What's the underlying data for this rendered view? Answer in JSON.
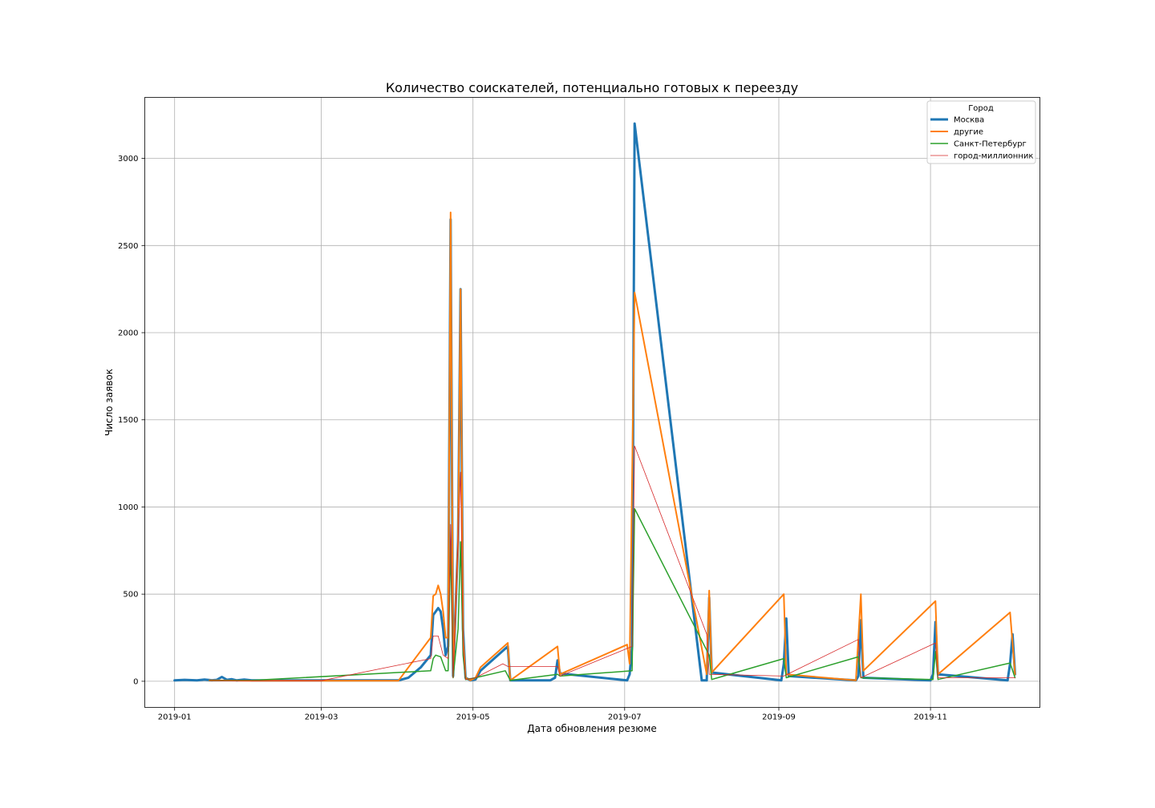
{
  "chart_data": {
    "type": "line",
    "title": "Количество соискателей, потенциально готовых к переезду",
    "xlabel": "Дата обновления резюме",
    "ylabel": "Число заявок",
    "x_type": "date",
    "xlim": [
      "2018-12-20",
      "2019-12-15"
    ],
    "ylim": [
      -150,
      3350
    ],
    "xticks": [
      "2019-01-01",
      "2019-03-01",
      "2019-05-01",
      "2019-07-01",
      "2019-09-01",
      "2019-11-01"
    ],
    "xtick_labels": [
      "2019-01",
      "2019-03",
      "2019-05",
      "2019-07",
      "2019-09",
      "2019-11"
    ],
    "yticks": [
      0,
      500,
      1000,
      1500,
      2000,
      2500,
      3000
    ],
    "ytick_labels": [
      "0",
      "500",
      "1000",
      "1500",
      "2000",
      "2500",
      "3000"
    ],
    "grid": true,
    "legend": {
      "title": "Город",
      "location": "top-right"
    },
    "series": [
      {
        "name": "Москва",
        "color": "#1f77b4",
        "width": 3,
        "points": [
          [
            "2019-01-01",
            5
          ],
          [
            "2019-01-05",
            8
          ],
          [
            "2019-01-10",
            5
          ],
          [
            "2019-01-13",
            10
          ],
          [
            "2019-01-16",
            6
          ],
          [
            "2019-01-18",
            8
          ],
          [
            "2019-01-20",
            25
          ],
          [
            "2019-01-22",
            8
          ],
          [
            "2019-01-24",
            12
          ],
          [
            "2019-01-26",
            5
          ],
          [
            "2019-01-29",
            10
          ],
          [
            "2019-02-01",
            5
          ],
          [
            "2019-02-10",
            5
          ],
          [
            "2019-03-01",
            5
          ],
          [
            "2019-04-01",
            5
          ],
          [
            "2019-04-05",
            20
          ],
          [
            "2019-04-10",
            80
          ],
          [
            "2019-04-14",
            150
          ],
          [
            "2019-04-15",
            380
          ],
          [
            "2019-04-17",
            420
          ],
          [
            "2019-04-18",
            400
          ],
          [
            "2019-04-19",
            300
          ],
          [
            "2019-04-20",
            150
          ],
          [
            "2019-04-21",
            200
          ],
          [
            "2019-04-22",
            2650
          ],
          [
            "2019-04-23",
            30
          ],
          [
            "2019-04-25",
            800
          ],
          [
            "2019-04-26",
            2250
          ],
          [
            "2019-04-27",
            300
          ],
          [
            "2019-04-28",
            20
          ],
          [
            "2019-04-30",
            5
          ],
          [
            "2019-05-02",
            10
          ],
          [
            "2019-05-04",
            60
          ],
          [
            "2019-05-15",
            200
          ],
          [
            "2019-05-16",
            5
          ],
          [
            "2019-06-01",
            5
          ],
          [
            "2019-06-03",
            20
          ],
          [
            "2019-06-04",
            120
          ],
          [
            "2019-06-05",
            45
          ],
          [
            "2019-07-02",
            5
          ],
          [
            "2019-07-03",
            40
          ],
          [
            "2019-07-04",
            200
          ],
          [
            "2019-07-05",
            3200
          ],
          [
            "2019-08-01",
            5
          ],
          [
            "2019-08-03",
            5
          ],
          [
            "2019-08-04",
            480
          ],
          [
            "2019-08-05",
            50
          ],
          [
            "2019-09-02",
            5
          ],
          [
            "2019-09-03",
            100
          ],
          [
            "2019-09-04",
            360
          ],
          [
            "2019-09-05",
            30
          ],
          [
            "2019-10-02",
            5
          ],
          [
            "2019-10-03",
            30
          ],
          [
            "2019-10-04",
            350
          ],
          [
            "2019-10-05",
            20
          ],
          [
            "2019-11-01",
            5
          ],
          [
            "2019-11-02",
            40
          ],
          [
            "2019-11-03",
            340
          ],
          [
            "2019-11-04",
            40
          ],
          [
            "2019-12-02",
            5
          ],
          [
            "2019-12-03",
            100
          ],
          [
            "2019-12-04",
            270
          ],
          [
            "2019-12-05",
            40
          ]
        ]
      },
      {
        "name": "другие",
        "color": "#ff7f0e",
        "width": 2,
        "points": [
          [
            "2019-01-15",
            5
          ],
          [
            "2019-02-01",
            3
          ],
          [
            "2019-03-01",
            3
          ],
          [
            "2019-04-01",
            3
          ],
          [
            "2019-04-14",
            250
          ],
          [
            "2019-04-15",
            490
          ],
          [
            "2019-04-16",
            500
          ],
          [
            "2019-04-17",
            550
          ],
          [
            "2019-04-18",
            500
          ],
          [
            "2019-04-19",
            400
          ],
          [
            "2019-04-20",
            250
          ],
          [
            "2019-04-21",
            250
          ],
          [
            "2019-04-22",
            2690
          ],
          [
            "2019-04-23",
            30
          ],
          [
            "2019-04-25",
            800
          ],
          [
            "2019-04-26",
            2250
          ],
          [
            "2019-04-27",
            250
          ],
          [
            "2019-04-28",
            20
          ],
          [
            "2019-04-30",
            5
          ],
          [
            "2019-05-02",
            20
          ],
          [
            "2019-05-04",
            80
          ],
          [
            "2019-05-15",
            220
          ],
          [
            "2019-05-16",
            5
          ],
          [
            "2019-06-04",
            200
          ],
          [
            "2019-06-05",
            40
          ],
          [
            "2019-07-02",
            210
          ],
          [
            "2019-07-03",
            100
          ],
          [
            "2019-07-05",
            2230
          ],
          [
            "2019-08-03",
            40
          ],
          [
            "2019-08-04",
            520
          ],
          [
            "2019-08-05",
            50
          ],
          [
            "2019-09-03",
            500
          ],
          [
            "2019-09-04",
            40
          ],
          [
            "2019-10-02",
            5
          ],
          [
            "2019-10-04",
            500
          ],
          [
            "2019-10-05",
            60
          ],
          [
            "2019-11-03",
            460
          ],
          [
            "2019-11-04",
            40
          ],
          [
            "2019-12-03",
            395
          ],
          [
            "2019-12-05",
            40
          ]
        ]
      },
      {
        "name": "Санкт-Петербург",
        "color": "#2ca02c",
        "width": 1.5,
        "points": [
          [
            "2019-01-15",
            3
          ],
          [
            "2019-02-01",
            5
          ],
          [
            "2019-04-14",
            60
          ],
          [
            "2019-04-15",
            130
          ],
          [
            "2019-04-16",
            150
          ],
          [
            "2019-04-18",
            140
          ],
          [
            "2019-04-20",
            60
          ],
          [
            "2019-04-21",
            60
          ],
          [
            "2019-04-22",
            800
          ],
          [
            "2019-04-23",
            20
          ],
          [
            "2019-04-25",
            300
          ],
          [
            "2019-04-26",
            800
          ],
          [
            "2019-04-27",
            150
          ],
          [
            "2019-04-28",
            10
          ],
          [
            "2019-05-02",
            20
          ],
          [
            "2019-05-14",
            60
          ],
          [
            "2019-05-16",
            5
          ],
          [
            "2019-06-04",
            40
          ],
          [
            "2019-06-05",
            30
          ],
          [
            "2019-07-04",
            60
          ],
          [
            "2019-07-05",
            990
          ],
          [
            "2019-08-04",
            150
          ],
          [
            "2019-08-05",
            10
          ],
          [
            "2019-09-03",
            130
          ],
          [
            "2019-09-04",
            20
          ],
          [
            "2019-10-03",
            140
          ],
          [
            "2019-10-04",
            20
          ],
          [
            "2019-11-02",
            10
          ],
          [
            "2019-11-03",
            170
          ],
          [
            "2019-11-04",
            10
          ],
          [
            "2019-12-03",
            105
          ],
          [
            "2019-12-05",
            20
          ]
        ]
      },
      {
        "name": "город-миллионник",
        "color": "#d62728",
        "width": 0.8,
        "points": [
          [
            "2019-01-15",
            3
          ],
          [
            "2019-03-01",
            3
          ],
          [
            "2019-04-14",
            130
          ],
          [
            "2019-04-15",
            260
          ],
          [
            "2019-04-17",
            260
          ],
          [
            "2019-04-19",
            150
          ],
          [
            "2019-04-21",
            130
          ],
          [
            "2019-04-22",
            900
          ],
          [
            "2019-04-23",
            20
          ],
          [
            "2019-04-26",
            1200
          ],
          [
            "2019-04-27",
            200
          ],
          [
            "2019-04-28",
            10
          ],
          [
            "2019-05-02",
            20
          ],
          [
            "2019-05-13",
            100
          ],
          [
            "2019-05-15",
            85
          ],
          [
            "2019-06-04",
            85
          ],
          [
            "2019-06-05",
            30
          ],
          [
            "2019-07-04",
            200
          ],
          [
            "2019-07-05",
            1350
          ],
          [
            "2019-08-03",
            270
          ],
          [
            "2019-08-04",
            40
          ],
          [
            "2019-09-03",
            30
          ],
          [
            "2019-10-03",
            240
          ],
          [
            "2019-10-04",
            20
          ],
          [
            "2019-11-03",
            220
          ],
          [
            "2019-11-04",
            20
          ],
          [
            "2019-12-03",
            20
          ],
          [
            "2019-12-05",
            20
          ]
        ]
      }
    ]
  }
}
